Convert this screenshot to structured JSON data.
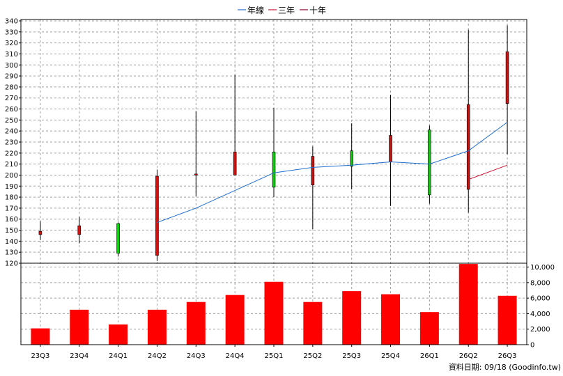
{
  "chart_data": {
    "type": "candlestick",
    "categories": [
      "23Q3",
      "23Q4",
      "24Q1",
      "24Q2",
      "24Q3",
      "24Q4",
      "25Q1",
      "25Q2",
      "25Q3",
      "25Q4",
      "26Q1",
      "26Q2",
      "26Q3"
    ],
    "legend": [
      {
        "name": "年線",
        "color": "#1f6fd0"
      },
      {
        "name": "三年",
        "color": "#cc1133"
      },
      {
        "name": "十年",
        "color": "#880033"
      }
    ],
    "price_axis": {
      "ylim": [
        120,
        340
      ],
      "ticks": [
        120,
        130,
        140,
        150,
        160,
        170,
        180,
        190,
        200,
        210,
        220,
        230,
        240,
        250,
        260,
        270,
        280,
        290,
        300,
        310,
        320,
        330,
        340
      ]
    },
    "candles": [
      {
        "open": 146,
        "close": 149,
        "high": 158,
        "low": 141
      },
      {
        "open": 146,
        "close": 154,
        "high": 162,
        "low": 138
      },
      {
        "open": 156,
        "close": 129,
        "high": 157,
        "low": 126
      },
      {
        "open": 127,
        "close": 199,
        "high": 205,
        "low": 122
      },
      {
        "open": 200,
        "close": 201,
        "high": 258,
        "low": 181
      },
      {
        "open": 200,
        "close": 221,
        "high": 291,
        "low": 200
      },
      {
        "open": 221,
        "close": 189,
        "high": 261,
        "low": 180
      },
      {
        "open": 191,
        "close": 217,
        "high": 226,
        "low": 151
      },
      {
        "open": 222,
        "close": 208,
        "high": 247,
        "low": 187
      },
      {
        "open": 212,
        "close": 236,
        "high": 273,
        "low": 172
      },
      {
        "open": 241,
        "close": 182,
        "high": 245,
        "low": 174
      },
      {
        "open": 187,
        "close": 264,
        "high": 332,
        "low": 166
      },
      {
        "open": 265,
        "close": 312,
        "high": 336,
        "low": 219
      }
    ],
    "year_line": [
      null,
      null,
      null,
      157,
      170,
      186,
      202,
      207,
      209,
      212,
      210,
      222,
      248
    ],
    "three_year_line": [
      null,
      null,
      null,
      null,
      null,
      null,
      null,
      null,
      null,
      null,
      null,
      196,
      209
    ],
    "ten_year_line": [
      null,
      null,
      null,
      null,
      null,
      null,
      null,
      null,
      null,
      null,
      null,
      null,
      null
    ],
    "volume_axis": {
      "ylim": [
        0,
        10500
      ],
      "ticks": [
        0,
        2000,
        4000,
        6000,
        8000,
        10000
      ],
      "tick_labels": [
        "0",
        "2,000",
        "4,000",
        "6,000",
        "8,000",
        "10,000"
      ]
    },
    "volume": [
      2100,
      4500,
      2600,
      4500,
      5500,
      6400,
      8100,
      5500,
      6900,
      6500,
      4200,
      10400,
      6300
    ],
    "grid": true
  },
  "source_label": "資料日期: 09/18  (Goodinfo.tw)",
  "colors": {
    "up": "#cc1111",
    "down": "#11cc11",
    "volume": "#ff0000",
    "grid": "#a0a0a0"
  }
}
